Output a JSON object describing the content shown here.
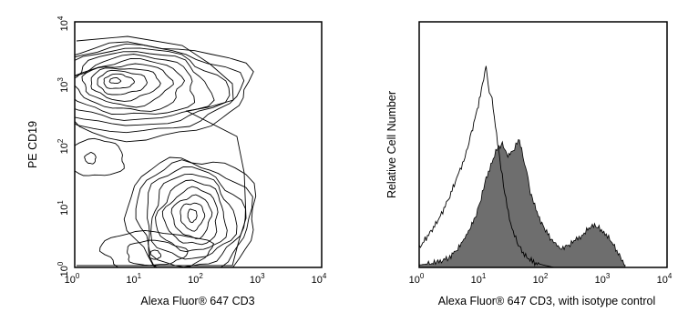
{
  "chart_data": [
    {
      "type": "contour",
      "xlabel": "Alexa Fluor® 647 CD3",
      "ylabel": "PE CD19",
      "xscale": "log",
      "yscale": "log",
      "xlim": [
        1,
        10000
      ],
      "ylim": [
        1,
        10000
      ],
      "x_ticks": [
        {
          "base": "10",
          "exp": "0"
        },
        {
          "base": "10",
          "exp": "1"
        },
        {
          "base": "10",
          "exp": "2"
        },
        {
          "base": "10",
          "exp": "3"
        },
        {
          "base": "10",
          "exp": "4"
        }
      ],
      "y_ticks": [
        {
          "base": "10",
          "exp": "0"
        },
        {
          "base": "10",
          "exp": "1"
        },
        {
          "base": "10",
          "exp": "2"
        },
        {
          "base": "10",
          "exp": "3"
        },
        {
          "base": "10",
          "exp": "4"
        }
      ],
      "grid": false,
      "populations": [
        {
          "x": 4.5,
          "y": 1100,
          "levels": 11
        },
        {
          "x": 80,
          "y": 7,
          "levels": 9
        },
        {
          "x": 1.8,
          "y": 60,
          "levels": 2
        },
        {
          "x": 20,
          "y": 1.6,
          "levels": 3
        }
      ]
    },
    {
      "type": "histogram",
      "xlabel": "Alexa Fluor® 647 CD3, with isotype control",
      "ylabel": "Relative Cell Number",
      "xscale": "log",
      "xlim": [
        1,
        10000
      ],
      "ylim": [
        0,
        1
      ],
      "x_ticks": [
        {
          "base": "10",
          "exp": "0"
        },
        {
          "base": "10",
          "exp": "1"
        },
        {
          "base": "10",
          "exp": "2"
        },
        {
          "base": "10",
          "exp": "3"
        },
        {
          "base": "10",
          "exp": "4"
        }
      ],
      "grid": false,
      "series": [
        {
          "style": "outline",
          "color": "#000000",
          "x": [
            1,
            1.3,
            1.7,
            2.2,
            3,
            4,
            5.5,
            7,
            9,
            10.5,
            12,
            13.5,
            15,
            17,
            20,
            24,
            30,
            38,
            50,
            70,
            100,
            150
          ],
          "y": [
            0.08,
            0.12,
            0.16,
            0.21,
            0.28,
            0.36,
            0.45,
            0.55,
            0.66,
            0.74,
            0.82,
            0.72,
            0.68,
            0.58,
            0.44,
            0.3,
            0.18,
            0.1,
            0.05,
            0.02,
            0.01,
            0
          ]
        },
        {
          "style": "filled",
          "color": "#6e6e6e",
          "x": [
            1,
            2,
            3,
            4,
            5,
            6,
            8,
            10,
            12,
            15,
            18,
            22,
            27,
            33,
            40,
            45,
            50,
            55,
            60,
            70,
            80,
            100,
            130,
            160,
            200,
            260,
            330,
            420,
            550,
            650,
            800,
            1000,
            1300,
            1700,
            2100
          ],
          "y": [
            0.01,
            0.02,
            0.04,
            0.07,
            0.1,
            0.14,
            0.2,
            0.28,
            0.36,
            0.43,
            0.48,
            0.5,
            0.46,
            0.47,
            0.52,
            0.49,
            0.42,
            0.39,
            0.32,
            0.27,
            0.22,
            0.17,
            0.12,
            0.09,
            0.08,
            0.09,
            0.11,
            0.13,
            0.16,
            0.17,
            0.16,
            0.14,
            0.1,
            0.05,
            0.01
          ]
        }
      ]
    }
  ]
}
